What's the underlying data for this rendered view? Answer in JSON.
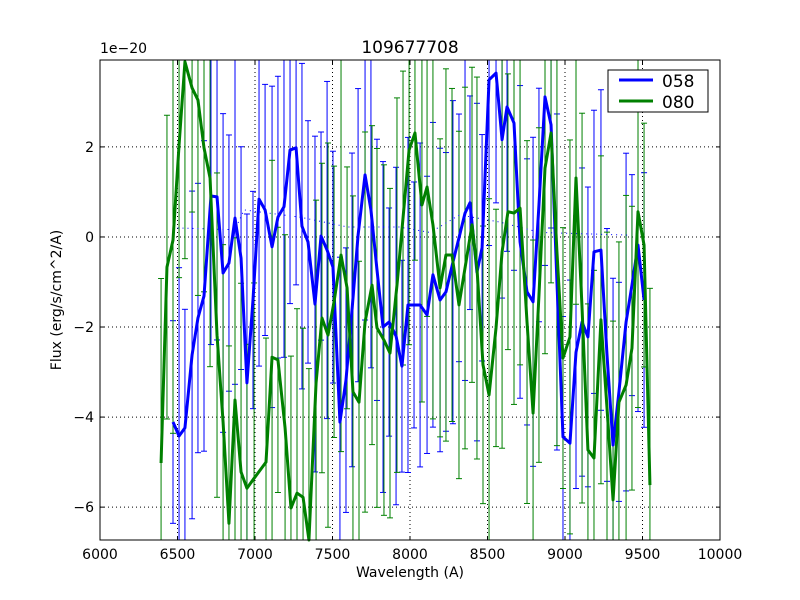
{
  "chart_data": {
    "type": "line",
    "title": "109677708",
    "xlabel": "Wavelength (A)",
    "ylabel": "Flux (erg/s/cm^2/A)",
    "y_offset_label": "1e−20",
    "xlim": [
      6000,
      10000
    ],
    "ylim": [
      -6.73,
      3.93
    ],
    "xticks": [
      6000,
      6500,
      7000,
      7500,
      8000,
      8500,
      9000,
      9500,
      10000
    ],
    "yticks": [
      -6,
      -4,
      -2,
      0,
      2
    ],
    "ytick_labels": [
      "−6",
      "−4",
      "−2",
      "0",
      "2"
    ],
    "grid": true,
    "legend_position": "top-right",
    "series": [
      {
        "name": "058",
        "color": "#0000ff",
        "x": [
          6471,
          6510,
          6548,
          6594,
          6632,
          6671,
          6716,
          6755,
          6794,
          6832,
          6871,
          6910,
          6948,
          6987,
          7026,
          7065,
          7110,
          7148,
          7187,
          7226,
          7265,
          7303,
          7342,
          7387,
          7426,
          7465,
          7503,
          7548,
          7587,
          7626,
          7665,
          7710,
          7748,
          7787,
          7826,
          7865,
          7910,
          7948,
          7987,
          8026,
          8065,
          8110,
          8148,
          8194,
          8232,
          8277,
          8316,
          8355,
          8387,
          8432,
          8465,
          8510,
          8555,
          8594,
          8626,
          8671,
          8710,
          8755,
          8794,
          8832,
          8871,
          8910,
          8948,
          8987,
          9032,
          9071,
          9110,
          9148,
          9187,
          9232,
          9271,
          9310,
          9348,
          9394,
          9432,
          9471,
          9510
        ],
        "y": [
          -4.11,
          -4.42,
          -4.24,
          -2.62,
          -1.8,
          -1.31,
          0.91,
          0.89,
          -0.8,
          -0.58,
          0.42,
          -0.47,
          -3.24,
          -1.4,
          0.84,
          0.6,
          -0.22,
          0.44,
          0.67,
          1.93,
          1.98,
          0.24,
          -0.11,
          -1.49,
          0.02,
          -0.29,
          -0.67,
          -4.11,
          -3.18,
          -1.62,
          0.04,
          1.38,
          0.6,
          -0.73,
          -2.0,
          -1.89,
          -2.2,
          -2.87,
          -1.51,
          -1.51,
          -1.51,
          -1.73,
          -0.84,
          -1.4,
          -1.22,
          -0.56,
          -0.02,
          0.53,
          0.76,
          -0.78,
          -0.24,
          3.49,
          3.64,
          2.16,
          2.89,
          2.53,
          -0.11,
          -1.22,
          -1.44,
          0.71,
          3.11,
          2.49,
          -1.0,
          -4.44,
          -4.58,
          -2.56,
          -1.89,
          -2.22,
          -0.33,
          -0.29,
          -2.62,
          -4.62,
          -3.44,
          -1.89,
          -1.07,
          -0.18,
          -1.4
        ],
        "yerr_typical": 3.0
      },
      {
        "name": "080",
        "color": "#008000",
        "x": [
          6394,
          6432,
          6471,
          6510,
          6548,
          6594,
          6632,
          6671,
          6710,
          6755,
          6794,
          6832,
          6871,
          6910,
          6948,
          6994,
          7071,
          7110,
          7148,
          7194,
          7232,
          7271,
          7310,
          7348,
          7394,
          7432,
          7471,
          7510,
          7555,
          7594,
          7632,
          7671,
          7710,
          7755,
          7787,
          7832,
          7871,
          7916,
          7955,
          7994,
          8032,
          8077,
          8110,
          8148,
          8194,
          8232,
          8271,
          8316,
          8355,
          8400,
          8432,
          8471,
          8510,
          8555,
          8594,
          8632,
          8671,
          8710,
          8755,
          8794,
          8832,
          8871,
          8910,
          8948,
          8987,
          9032,
          9071,
          9110,
          9148,
          9187,
          9232,
          9271,
          9310,
          9348,
          9394,
          9432,
          9471,
          9510,
          9548
        ],
        "y": [
          -5.02,
          -0.67,
          -0.07,
          2.04,
          3.89,
          3.31,
          3.04,
          1.98,
          1.31,
          -2.18,
          -4.11,
          -6.36,
          -3.62,
          -5.22,
          -5.58,
          -5.36,
          -5.0,
          -2.67,
          -2.73,
          -4.24,
          -6.02,
          -5.69,
          -5.78,
          -6.73,
          -3.24,
          -1.8,
          -2.18,
          -1.44,
          -0.4,
          -1.13,
          -3.44,
          -3.67,
          -1.89,
          -1.07,
          -2.02,
          -2.29,
          -2.58,
          -1.07,
          0.42,
          1.93,
          2.31,
          0.71,
          1.11,
          0.27,
          -1.13,
          -0.4,
          -0.4,
          -1.51,
          -0.69,
          0.27,
          -0.69,
          -2.84,
          -3.51,
          -2.02,
          -0.33,
          0.56,
          0.53,
          0.64,
          -1.89,
          -3.91,
          -1.29,
          1.53,
          2.31,
          -0.33,
          -2.69,
          -2.22,
          1.31,
          -1.58,
          -4.73,
          -4.91,
          -1.84,
          -3.8,
          -5.84,
          -3.67,
          -3.29,
          -2.47,
          0.56,
          -0.18,
          -5.51
        ],
        "yerr_typical": 3.5
      }
    ],
    "model_line": {
      "color": "#0000ff",
      "style": "dotted",
      "x": [
        6500,
        6870,
        6930,
        7290,
        7600,
        7930,
        8130,
        8320,
        8580,
        8840,
        9420
      ],
      "y": [
        0.2,
        0.16,
        0.6,
        0.44,
        0.22,
        0.22,
        0.1,
        0.49,
        0.33,
        0.1,
        0.04
      ]
    }
  }
}
